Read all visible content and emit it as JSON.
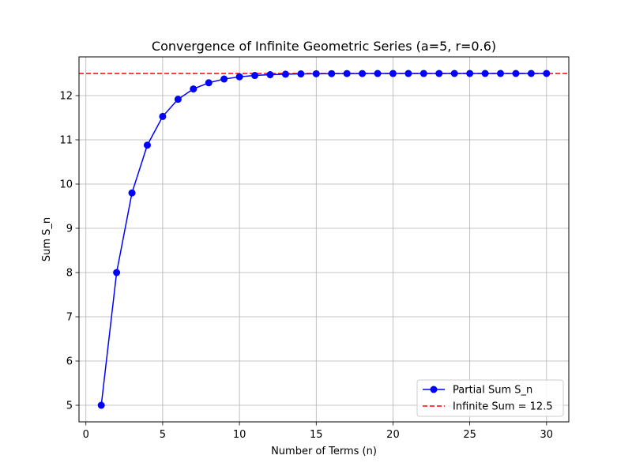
{
  "chart_data": {
    "type": "line",
    "title": "Convergence of Infinite Geometric Series (a=5, r=0.6)",
    "xlabel": "Number of Terms (n)",
    "ylabel": "Sum S_n",
    "xlim": [
      -0.45,
      31.45
    ],
    "ylim": [
      4.625,
      12.875
    ],
    "xticks": [
      0,
      5,
      10,
      15,
      20,
      25,
      30
    ],
    "yticks": [
      5,
      6,
      7,
      8,
      9,
      10,
      11,
      12
    ],
    "grid": true,
    "legend_position": "lower-right",
    "x": [
      1,
      2,
      3,
      4,
      5,
      6,
      7,
      8,
      9,
      10,
      11,
      12,
      13,
      14,
      15,
      16,
      17,
      18,
      19,
      20,
      21,
      22,
      23,
      24,
      25,
      26,
      27,
      28,
      29,
      30
    ],
    "series": [
      {
        "name": "Partial Sum S_n",
        "color": "#0000ff",
        "marker": "circle",
        "line_style": "solid",
        "values": [
          5.0,
          8.0,
          9.8,
          10.88,
          11.528,
          11.9168,
          12.1501,
          12.29,
          12.374,
          12.4244,
          12.4547,
          12.4728,
          12.4837,
          12.4902,
          12.4941,
          12.4965,
          12.4979,
          12.4987,
          12.4992,
          12.4995,
          12.4997,
          12.4998,
          12.4999,
          12.5,
          12.5,
          12.5,
          12.5,
          12.5,
          12.5,
          12.5
        ]
      }
    ],
    "reference_line": {
      "name": "Infinite Sum = 12.5",
      "y": 12.5,
      "color": "#ff0000",
      "line_style": "dashed"
    }
  }
}
